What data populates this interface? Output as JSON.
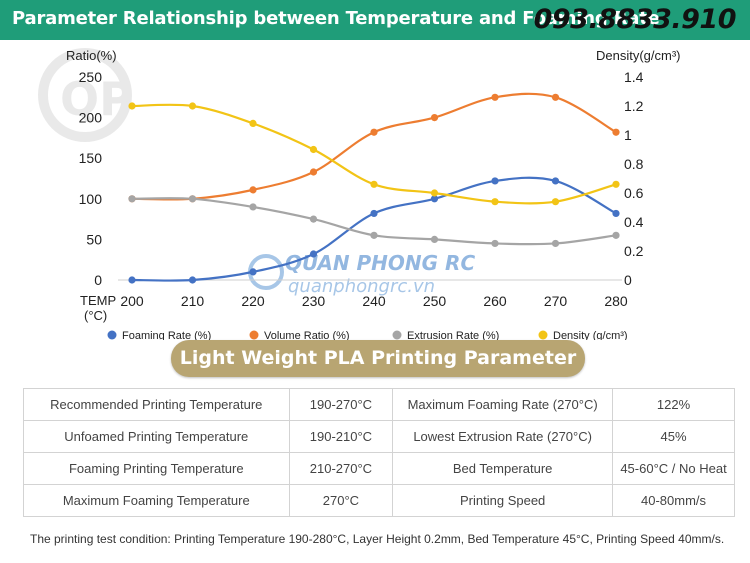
{
  "header": {
    "title": "Parameter Relationship between Temperature and Foaming Rate",
    "phone": "093.8833.910"
  },
  "chart_data": {
    "type": "line",
    "left_axis_label": "Ratio(%)",
    "right_axis_label": "Density(g/cm³)",
    "x_axis_label": "TEMP (°C)",
    "x": [
      200,
      210,
      220,
      230,
      240,
      250,
      260,
      270,
      280
    ],
    "left_ylim": [
      0,
      250
    ],
    "left_ticks": [
      0,
      50,
      100,
      150,
      200,
      250
    ],
    "right_ylim": [
      0,
      1.4
    ],
    "right_ticks": [
      "0",
      "0.2",
      "0.4",
      "0.6",
      "0.8",
      "1",
      "1.2",
      "1.4"
    ],
    "grid": false,
    "legend_position": "bottom",
    "series": [
      {
        "name": "Foaming Rate (%)",
        "axis": "left",
        "color": "#4472c4",
        "values": [
          0,
          0,
          10,
          32,
          82,
          100,
          122,
          122,
          82
        ]
      },
      {
        "name": "Volume Ratio (%)",
        "axis": "left",
        "color": "#ed7d31",
        "values": [
          100,
          100,
          111,
          133,
          182,
          200,
          225,
          225,
          182
        ]
      },
      {
        "name": "Extrusion Rate (%)",
        "axis": "left",
        "color": "#a5a5a5",
        "values": [
          100,
          100,
          90,
          75,
          55,
          50,
          45,
          45,
          55
        ]
      },
      {
        "name": "Density (g/cm³)",
        "axis": "right",
        "color": "#f2c416",
        "values": [
          1.2,
          1.2,
          1.08,
          0.9,
          0.66,
          0.6,
          0.54,
          0.54,
          0.66
        ]
      }
    ]
  },
  "watermark": {
    "brand": "QUAN PHONG RC",
    "site": "quanphongrc.vn"
  },
  "banner": {
    "title": "Light Weight PLA Printing Parameter"
  },
  "params_table": {
    "rows": [
      [
        "Recommended Printing Temperature",
        "190-270°C",
        "Maximum Foaming Rate (270°C)",
        "122%"
      ],
      [
        "Unfoamed Printing Temperature",
        "190-210°C",
        "Lowest Extrusion Rate (270°C)",
        "45%"
      ],
      [
        "Foaming Printing Temperature",
        "210-270°C",
        "Bed Temperature",
        "45-60°C / No Heat"
      ],
      [
        "Maximum Foaming Temperature",
        "270°C",
        "Printing Speed",
        "40-80mm/s"
      ]
    ]
  },
  "footnote": "The printing test condition: Printing Temperature 190-280°C, Layer Height 0.2mm, Bed Temperature 45°C, Printing Speed 40mm/s."
}
